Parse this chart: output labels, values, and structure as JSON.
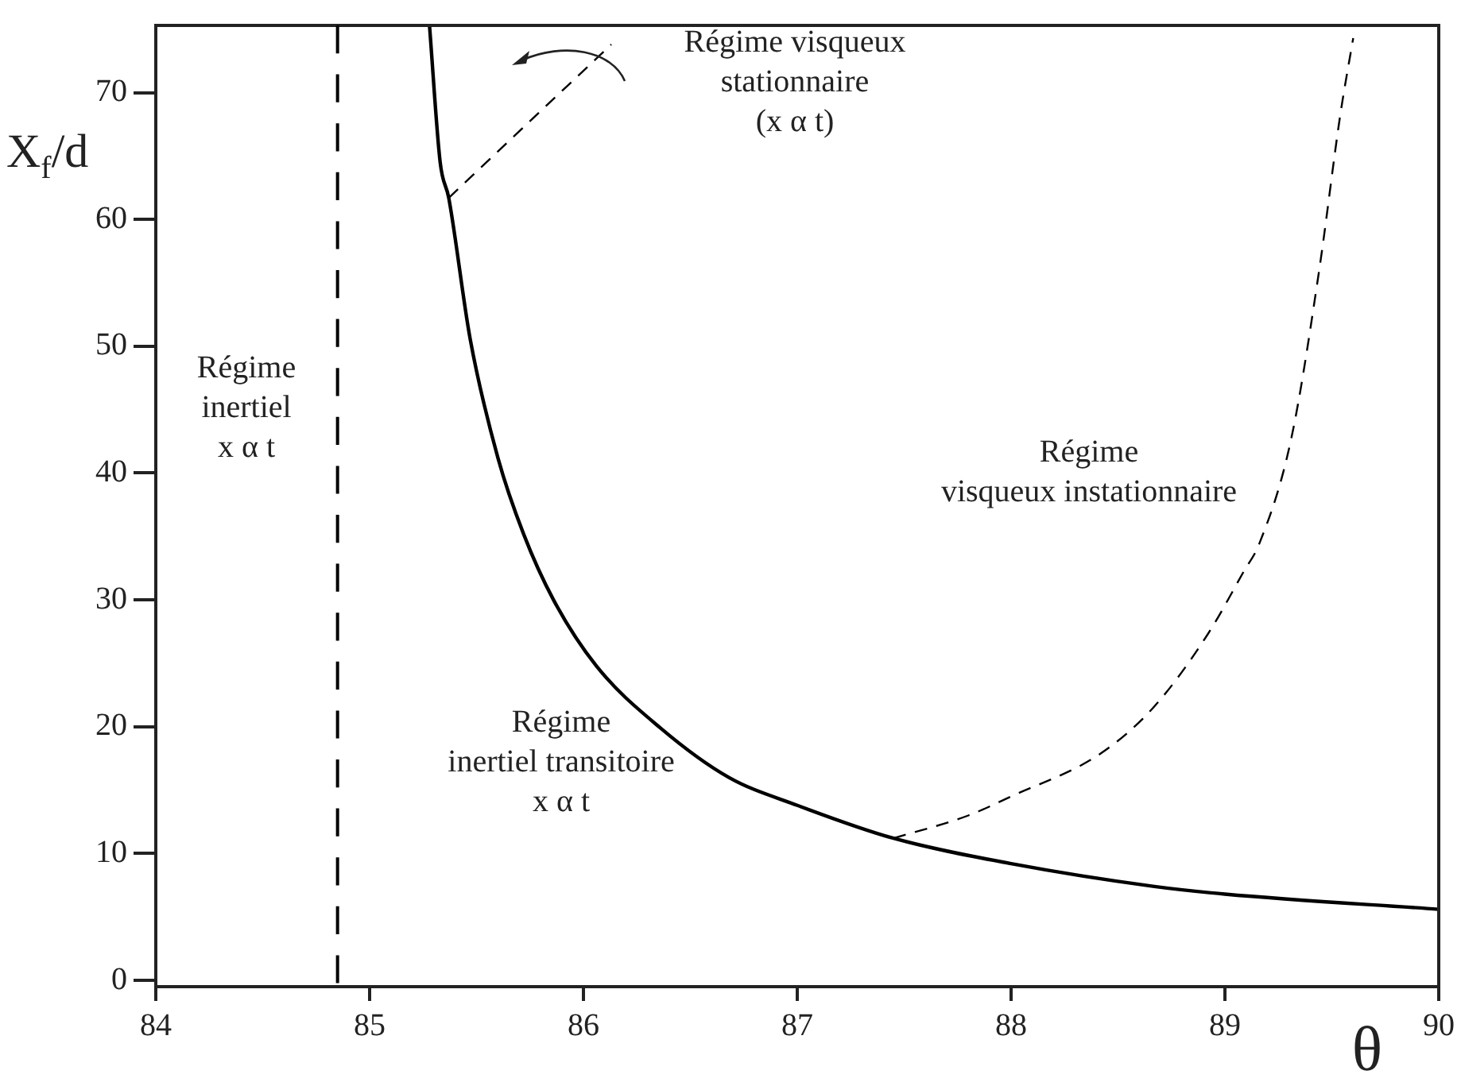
{
  "chart_data": {
    "type": "line",
    "xlabel": "θ",
    "ylabel": "X$_{f}$/d",
    "xlim": [
      84,
      90
    ],
    "xticks": [
      84,
      85,
      86,
      87,
      88,
      89,
      90
    ],
    "ylim": [
      -0.5,
      75.3
    ],
    "yticks": [
      0,
      10,
      20,
      30,
      40,
      50,
      60,
      70
    ],
    "grid": false,
    "legend": false,
    "marker": "none",
    "series": [
      {
        "color": "#000000",
        "line_style": "solid",
        "x": [
          85.28,
          85.33,
          85.37,
          85.47,
          85.6,
          85.72,
          85.86,
          86.06,
          86.36,
          86.68,
          87.0,
          87.45,
          88.0,
          88.67,
          89.0,
          90.0
        ],
        "values": [
          75.3,
          64.5,
          61.7,
          50.6,
          41.2,
          35.2,
          30.0,
          24.8,
          19.9,
          16.0,
          13.8,
          11.2,
          9.2,
          7.4,
          6.8,
          5.6
        ]
      },
      {
        "color": "#000000",
        "line_style": "dashed",
        "x": [
          87.45,
          87.8,
          88.0,
          88.42,
          88.67,
          88.92,
          89.09,
          89.16,
          89.31,
          89.44,
          89.54,
          89.6
        ],
        "values": [
          11.2,
          13.0,
          14.5,
          17.9,
          21.6,
          27.3,
          32.3,
          34.4,
          42.7,
          55.9,
          68.3,
          74.3
        ]
      },
      {
        "color": "#000000",
        "line_style": "dashed",
        "x": [
          85.37,
          86.13
        ],
        "values": [
          61.7,
          73.8
        ]
      }
    ],
    "ref_lines": [
      {
        "axis": "x",
        "value": 84.85,
        "line_style": "dashed",
        "color": "#000000"
      }
    ],
    "annotations": [
      "Régime visqueux\nstationnaire\n(x α t)",
      "Régime\ninertiel\nx α t",
      "Régime\ninertiel transitoire\nx α t",
      "Régime\nvisqueux instationnaire"
    ]
  }
}
